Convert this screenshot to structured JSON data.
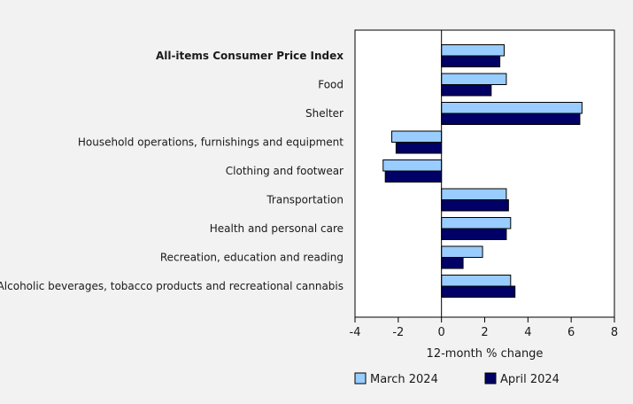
{
  "chart_data": {
    "type": "bar",
    "orientation": "horizontal",
    "categories": [
      "All-items Consumer Price Index",
      "Food",
      "Shelter",
      "Household operations, furnishings and equipment",
      "Clothing and footwear",
      "Transportation",
      "Health and personal care",
      "Recreation, education and reading",
      "Alcoholic beverages, tobacco products and recreational cannabis"
    ],
    "bold_categories": [
      "All-items Consumer Price Index"
    ],
    "series": [
      {
        "name": "March 2024",
        "color": "#99ccff",
        "values": [
          2.9,
          3.0,
          6.5,
          -2.3,
          -2.7,
          3.0,
          3.2,
          1.9,
          3.2
        ]
      },
      {
        "name": "April 2024",
        "color": "#000066",
        "values": [
          2.7,
          2.3,
          6.4,
          -2.1,
          -2.6,
          3.1,
          3.0,
          1.0,
          3.4
        ]
      }
    ],
    "xlabel": "12-month % change",
    "ylabel": "",
    "xlim": [
      -4,
      8
    ],
    "xticks": [
      -4,
      -2,
      0,
      2,
      4,
      6,
      8
    ],
    "xtick_labels": [
      "-4",
      "-2",
      "0",
      "2",
      "4",
      "6",
      "8"
    ],
    "grid": false,
    "legend_position": "bottom"
  },
  "colors": {
    "background": "#f2f2f2",
    "plot_background": "#ffffff",
    "bar_outline": "#000000"
  }
}
